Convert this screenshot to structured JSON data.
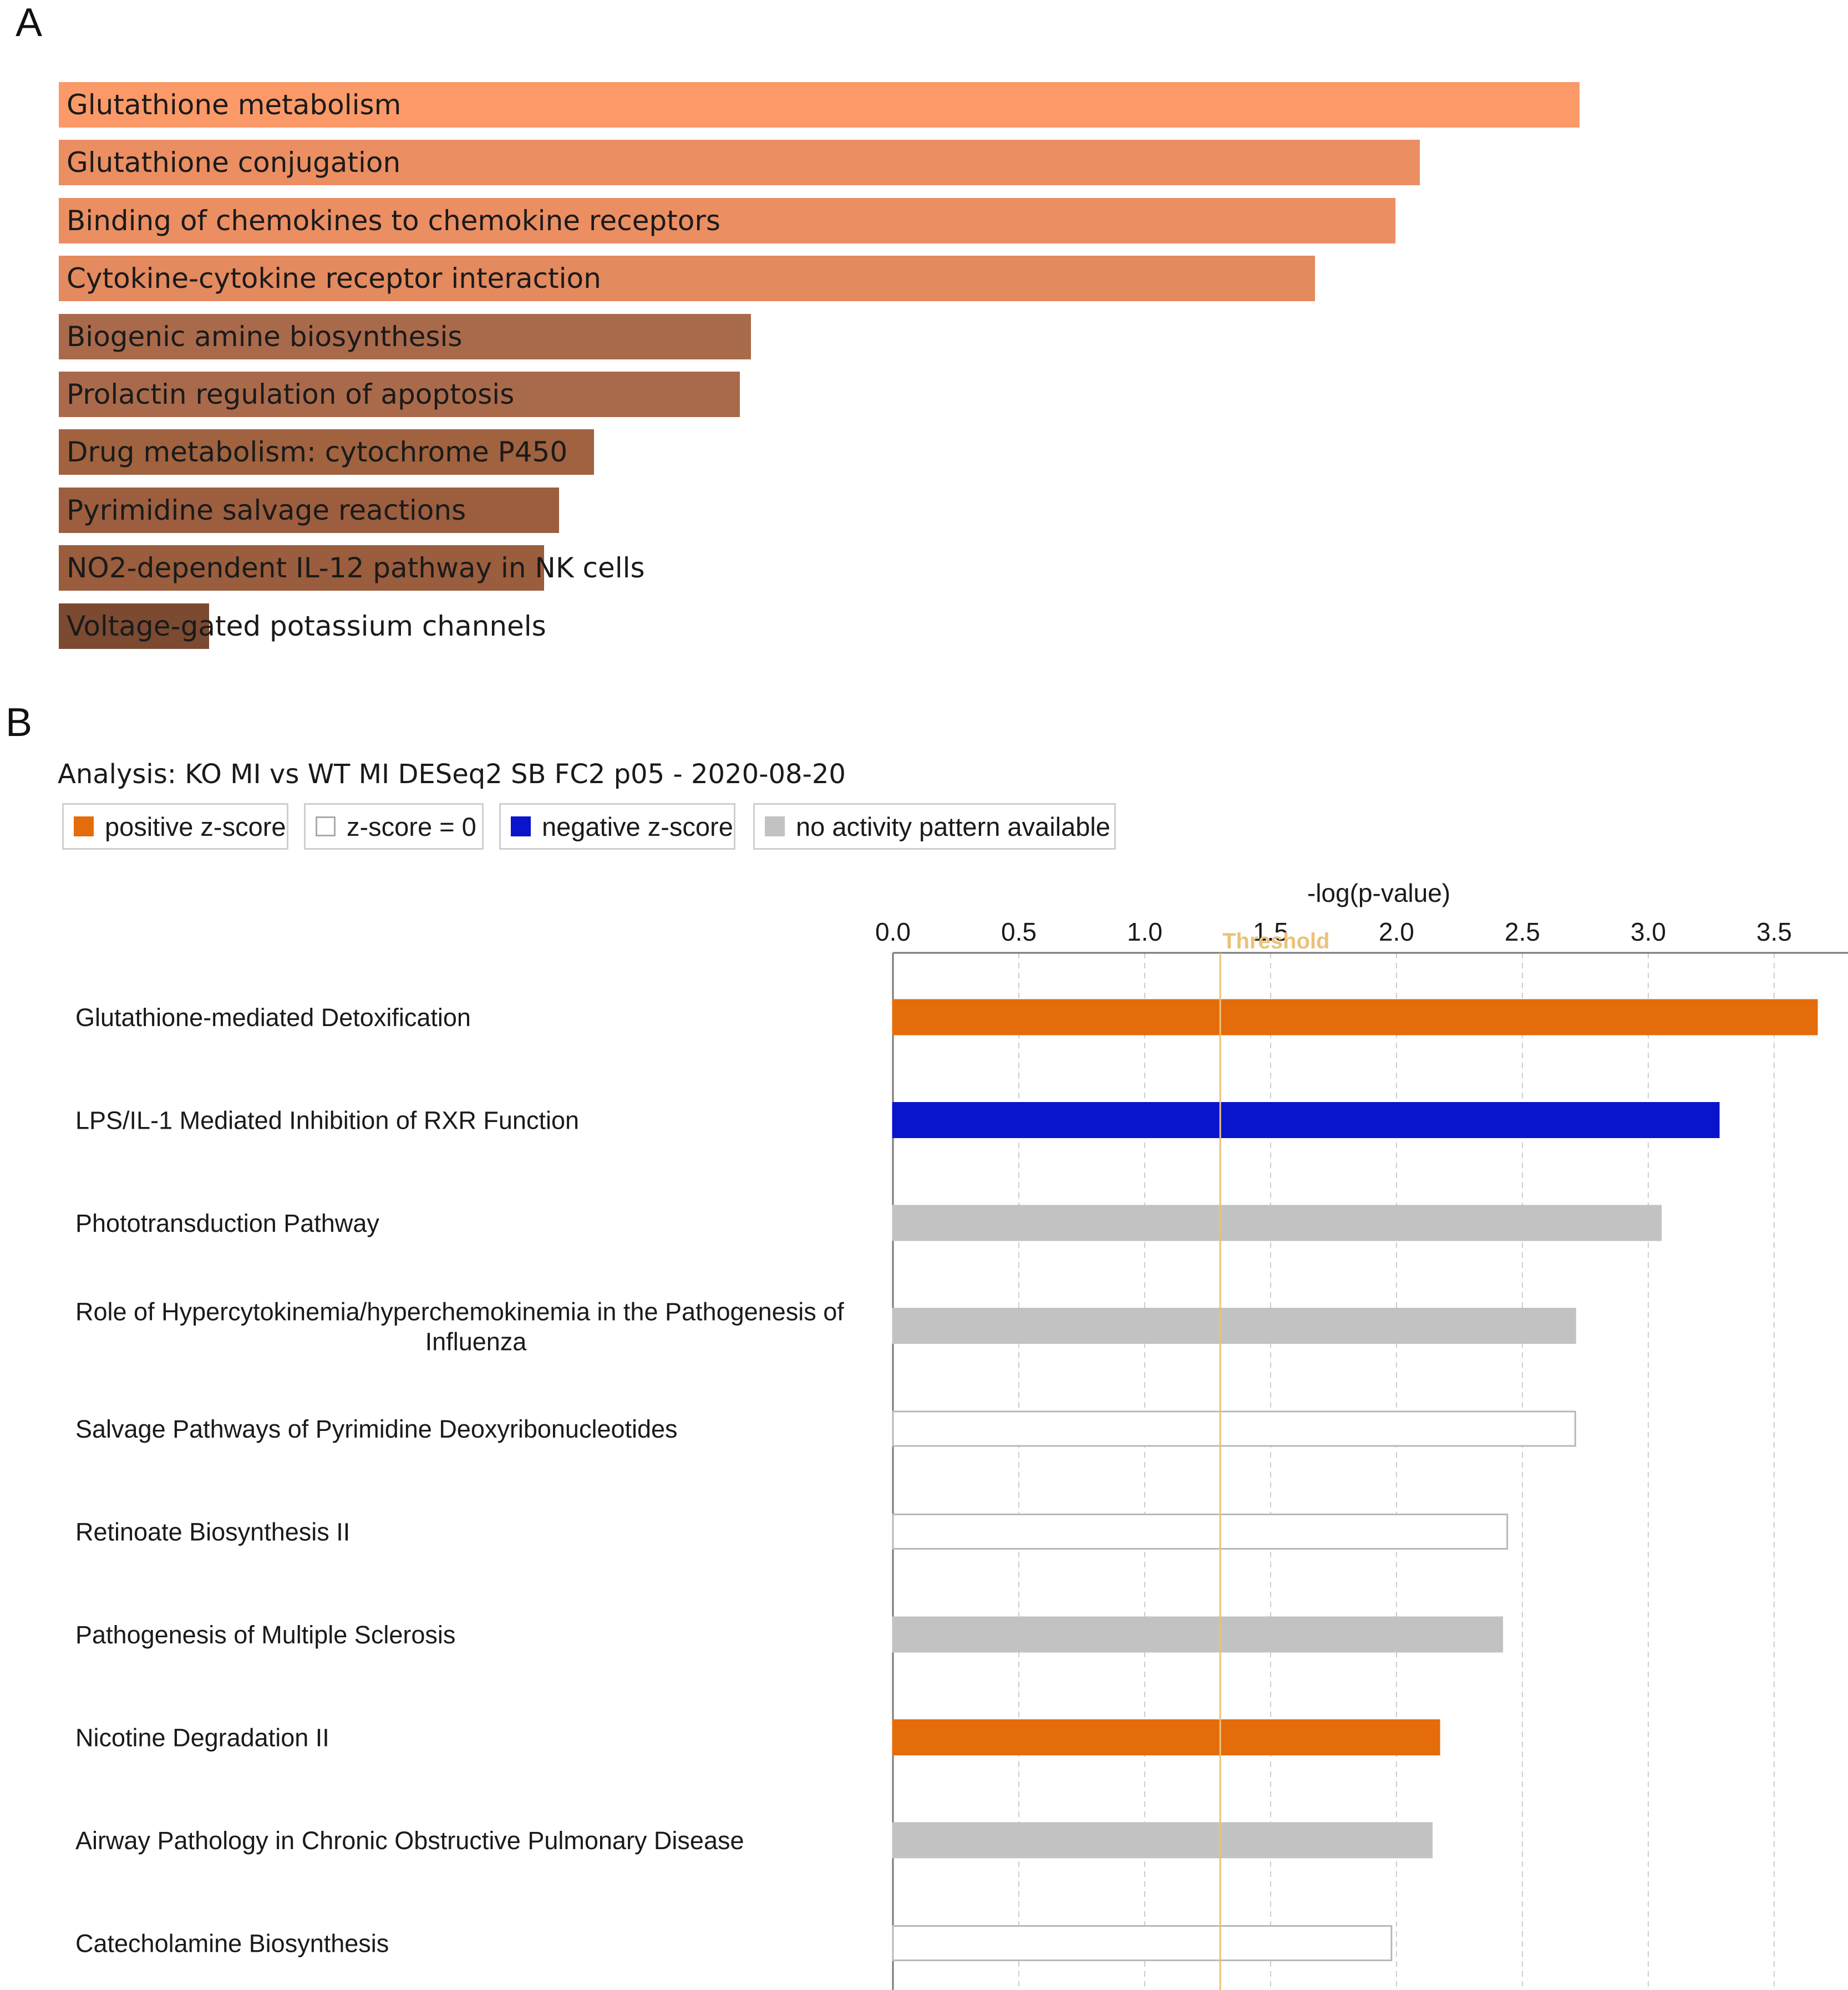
{
  "panel_a": {
    "letter": "A",
    "chart_data": {
      "type": "bar",
      "orientation": "horizontal",
      "categories": [
        "Glutathione metabolism",
        "Glutathione conjugation",
        "Binding of chemokines to chemokine receptors",
        "Cytokine-cytokine receptor interaction",
        "Biogenic amine biosynthesis",
        "Prolactin regulation of apoptosis",
        "Drug metabolism: cytochrome P450",
        "Pyrimidine salvage reactions",
        "NO2-dependent IL-12 pathway in NK cells",
        "Voltage-gated potassium channels"
      ],
      "values": [
        1.0,
        0.895,
        0.879,
        0.826,
        0.455,
        0.448,
        0.352,
        0.329,
        0.319,
        0.099
      ],
      "colors": [
        "#fb9a68",
        "#eb8e62",
        "#eb8e62",
        "#e38a5e",
        "#a96a4b",
        "#a96a4b",
        "#a0623f",
        "#9c5e3e",
        "#9a5d3d",
        "#7b4a31"
      ],
      "title": "",
      "xlabel": "",
      "ylabel": ""
    }
  },
  "panel_b": {
    "letter": "B",
    "analysis": "Analysis: KO MI vs WT MI DESeq2 SB FC2 p05 - 2020-08-20",
    "legend": [
      {
        "label": "positive z-score",
        "color": "#e46c0a",
        "border": "#e46c0a"
      },
      {
        "label": "z-score = 0",
        "color": "#ffffff",
        "border": "#aaaaaa"
      },
      {
        "label": "negative z-score",
        "color": "#0a14cc",
        "border": "#0a14cc"
      },
      {
        "label": "no activity pattern available",
        "color": "#c2c2c2",
        "border": "#c2c2c2"
      }
    ],
    "chart_data": {
      "type": "bar",
      "orientation": "horizontal",
      "xlabel": "-log(p-value)",
      "xlim": [
        0,
        3.75
      ],
      "xticks": [
        "0.0",
        "0.5",
        "1.0",
        "1.5",
        "2.0",
        "2.5",
        "3.0",
        "3.5"
      ],
      "xtick_values": [
        0,
        0.5,
        1.0,
        1.5,
        2.0,
        2.5,
        3.0,
        3.5
      ],
      "threshold": {
        "label": "Threshold",
        "value": 1.3
      },
      "grid": true,
      "categories": [
        [
          "Glutathione-mediated Detoxification"
        ],
        [
          "LPS/IL-1 Mediated Inhibition of RXR Function"
        ],
        [
          "Phototransduction Pathway"
        ],
        [
          "Role of Hypercytokinemia/hyperchemokinemia in the Pathogenesis of",
          "Influenza"
        ],
        [
          "Salvage Pathways of Pyrimidine Deoxyribonucleotides"
        ],
        [
          "Retinoate Biosynthesis II"
        ],
        [
          "Pathogenesis of Multiple Sclerosis"
        ],
        [
          "Nicotine Degradation II"
        ],
        [
          "Airway Pathology in Chronic Obstructive Pulmonary Disease"
        ],
        [
          "Catecholamine Biosynthesis"
        ]
      ],
      "values": [
        3.67,
        3.28,
        3.05,
        2.71,
        2.71,
        2.44,
        2.42,
        2.17,
        2.14,
        1.98
      ],
      "z_category": [
        "positive",
        "negative",
        "none",
        "none",
        "zero",
        "zero",
        "none",
        "positive",
        "none",
        "zero"
      ]
    }
  }
}
